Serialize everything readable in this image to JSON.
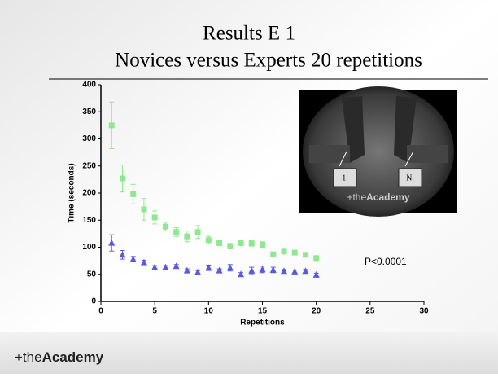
{
  "slide": {
    "title_line1": "Results E 1",
    "title_line2": "Novices versus Experts 20 repetitions",
    "photo": {
      "label_first": "1.",
      "label_last": "N.",
      "logo_prefix": "+the",
      "logo_name": "Academy"
    },
    "footer": {
      "logo_prefix": "+the",
      "logo_name": "Academy"
    }
  },
  "chart_data": {
    "type": "scatter",
    "x_label": "Repetitions",
    "y_label": "Time (seconds)",
    "annotation": "P<0.0001",
    "x": [
      1,
      2,
      3,
      4,
      5,
      6,
      7,
      8,
      9,
      10,
      11,
      12,
      13,
      14,
      15,
      16,
      17,
      18,
      19,
      20
    ],
    "series": [
      {
        "name": "Novices",
        "color": "#8fe88f",
        "marker": "square",
        "values": [
          325,
          227,
          198,
          170,
          155,
          138,
          128,
          120,
          128,
          113,
          108,
          102,
          108,
          107,
          105,
          87,
          92,
          90,
          86,
          80
        ],
        "errors": [
          43,
          25,
          18,
          20,
          12,
          8,
          8,
          10,
          12,
          7,
          5,
          5,
          5,
          5,
          5,
          4,
          4,
          4,
          4,
          4
        ]
      },
      {
        "name": "Experts",
        "color": "#5a5ae0",
        "marker": "triangle",
        "values": [
          108,
          86,
          78,
          72,
          63,
          63,
          65,
          57,
          54,
          62,
          57,
          62,
          50,
          57,
          59,
          58,
          56,
          55,
          56,
          49
        ],
        "errors": [
          15,
          8,
          5,
          4,
          3,
          3,
          3,
          3,
          3,
          5,
          3,
          6,
          3,
          6,
          6,
          5,
          3,
          3,
          3,
          3
        ]
      }
    ],
    "xlim": [
      0,
      30
    ],
    "xticks": [
      0,
      5,
      10,
      15,
      20,
      25,
      30
    ],
    "ylim": [
      0,
      400
    ],
    "yticks": [
      0,
      50,
      100,
      150,
      200,
      250,
      300,
      350,
      400
    ]
  }
}
